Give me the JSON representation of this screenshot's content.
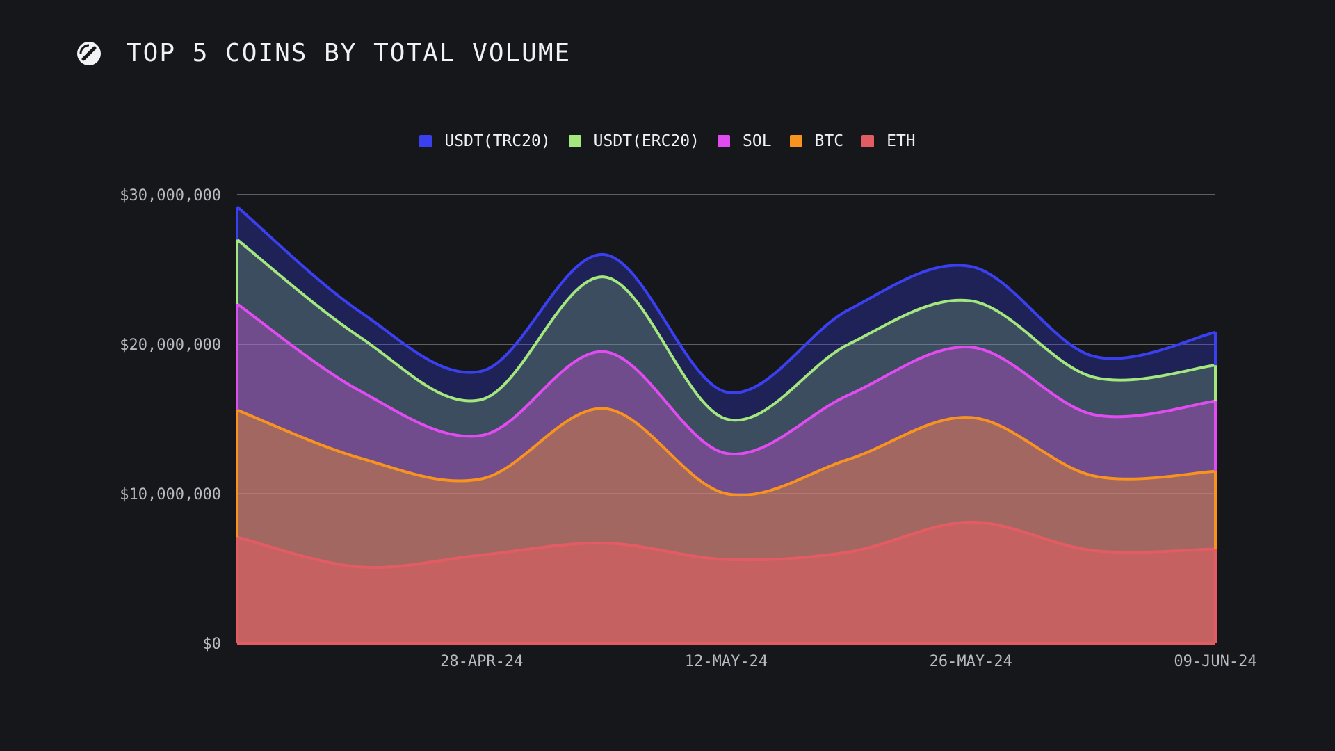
{
  "header": {
    "title": "TOP 5 COINS BY TOTAL VOLUME",
    "logo_icon": "slash-circle-logo"
  },
  "colors": {
    "background": "#16171b",
    "grid": "#8a8a90",
    "USDT(TRC20)": "#3a3ff0",
    "USDT(ERC20)": "#a3e77e",
    "SOL": "#e04cf0",
    "BTC": "#f7931e",
    "ETH": "#e45c63"
  },
  "chart_data": {
    "type": "area",
    "stacked": true,
    "title": "TOP 5 COINS BY TOTAL VOLUME",
    "xlabel": "",
    "ylabel": "",
    "x": [
      "14-APR-24",
      "21-APR-24",
      "28-APR-24",
      "05-MAY-24",
      "12-MAY-24",
      "19-MAY-24",
      "26-MAY-24",
      "02-JUN-24",
      "09-JUN-24"
    ],
    "x_ticks": [
      "28-APR-24",
      "12-MAY-24",
      "26-MAY-24",
      "09-JUN-24"
    ],
    "y_ticks": [
      "$0",
      "$10,000,000",
      "$20,000,000",
      "$30,000,000"
    ],
    "ylim": [
      0,
      30000000
    ],
    "grid": true,
    "legend_position": "top-center",
    "series": [
      {
        "name": "ETH",
        "values": [
          7100000,
          5100000,
          5900000,
          6700000,
          5600000,
          6100000,
          8100000,
          6200000,
          6300000
        ]
      },
      {
        "name": "BTC",
        "values": [
          8500000,
          7300000,
          5100000,
          9000000,
          4400000,
          6200000,
          7000000,
          5000000,
          5200000
        ]
      },
      {
        "name": "SOL",
        "values": [
          7100000,
          4500000,
          2900000,
          3800000,
          2700000,
          4300000,
          4700000,
          4100000,
          4700000
        ]
      },
      {
        "name": "USDT(ERC20)",
        "values": [
          4300000,
          3600000,
          2400000,
          5000000,
          2300000,
          3400000,
          3100000,
          2500000,
          2400000
        ]
      },
      {
        "name": "USDT(TRC20)",
        "values": [
          2200000,
          1700000,
          1900000,
          1500000,
          1800000,
          2300000,
          2300000,
          1400000,
          2200000
        ]
      }
    ]
  },
  "legend": [
    {
      "name": "USDT(TRC20)",
      "color": "#3a3ff0"
    },
    {
      "name": "USDT(ERC20)",
      "color": "#a3e77e"
    },
    {
      "name": "SOL",
      "color": "#e04cf0"
    },
    {
      "name": "BTC",
      "color": "#f7931e"
    },
    {
      "name": "ETH",
      "color": "#e45c63"
    }
  ]
}
